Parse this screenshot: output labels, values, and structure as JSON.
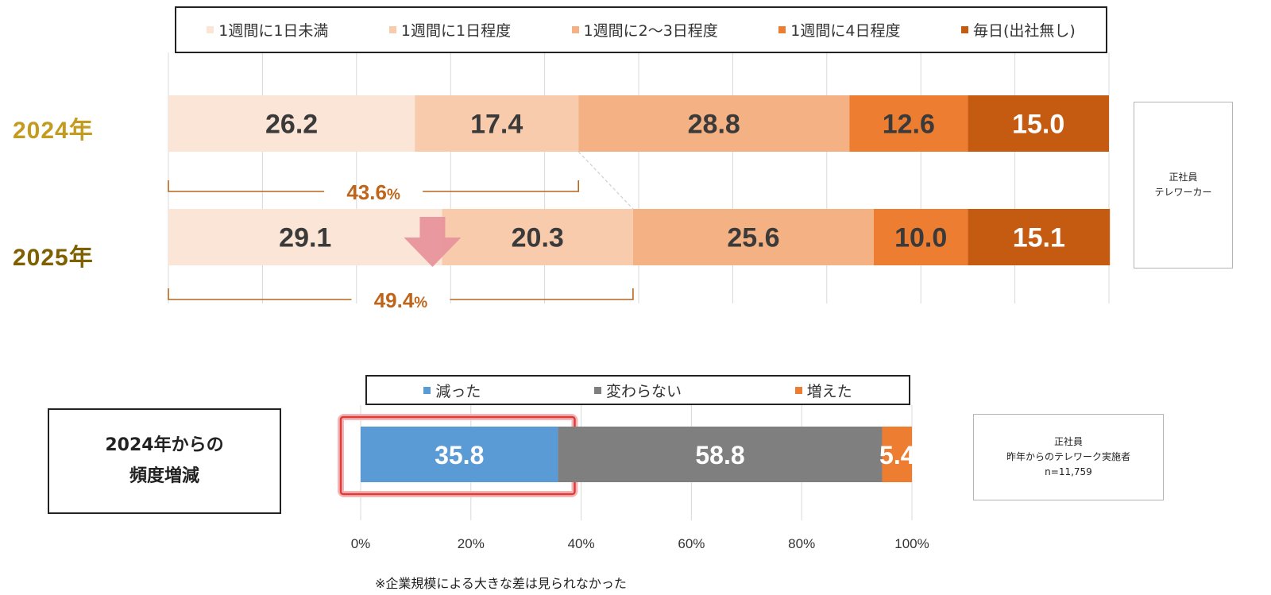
{
  "chart_data": [
    {
      "type": "bar",
      "orientation": "horizontal",
      "stacked": true,
      "categories": [
        "2024年",
        "2025年"
      ],
      "series": [
        {
          "name": "1週間に1日未満",
          "values": [
            26.2,
            29.1
          ]
        },
        {
          "name": "1週間に1日程度",
          "values": [
            17.4,
            20.3
          ]
        },
        {
          "name": "1週間に2～3日程度",
          "values": [
            28.8,
            25.6
          ]
        },
        {
          "name": "1週間に4日程度",
          "values": [
            12.6,
            10.0
          ]
        },
        {
          "name": "毎日(出社無し)",
          "values": [
            15.0,
            15.1
          ]
        }
      ],
      "colors": [
        "#fbe5d6",
        "#f8cbad",
        "#f4b183",
        "#ed7d31",
        "#c55a11"
      ],
      "category_colors": [
        "#c39b1f",
        "#7f6000"
      ],
      "xlim": [
        0,
        100
      ],
      "grid": true,
      "legend": "top",
      "annotations": [
        {
          "text": "43.6",
          "unit": "%"
        },
        {
          "text": "49.4",
          "unit": "%"
        }
      ],
      "note": [
        "正社員",
        "テレワーカー"
      ]
    },
    {
      "type": "bar",
      "orientation": "horizontal",
      "stacked": true,
      "categories": [
        "2024年からの頻度増減"
      ],
      "category_label_lines": [
        "2024年からの",
        "頻度増減"
      ],
      "series": [
        {
          "name": "減った",
          "values": [
            35.8
          ]
        },
        {
          "name": "変わらない",
          "values": [
            58.8
          ]
        },
        {
          "name": "増えた",
          "values": [
            5.4
          ]
        }
      ],
      "colors": [
        "#5b9bd5",
        "#7f7f7f",
        "#ed7d31"
      ],
      "xlim": [
        0,
        100
      ],
      "xticks": [
        "0%",
        "20%",
        "40%",
        "60%",
        "80%",
        "100%"
      ],
      "grid": true,
      "legend": "top",
      "highlight_series": "減った",
      "note": [
        "正社員",
        "昨年からのテレワーク実施者",
        "n=11,759"
      ]
    }
  ],
  "footnote": "※企業規模による大きな差は見られなかった"
}
